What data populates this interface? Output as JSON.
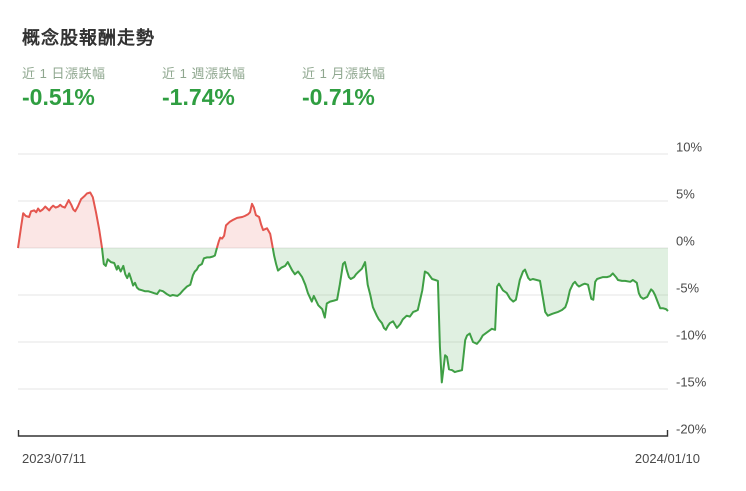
{
  "page": {
    "title": "概念股報酬走勢"
  },
  "stats": [
    {
      "label": "近 1 日漲跌幅",
      "value": "-0.51%"
    },
    {
      "label": "近 1 週漲跌幅",
      "value": "-1.74%"
    },
    {
      "label": "近 1 月漲跌幅",
      "value": "-0.71%"
    }
  ],
  "chart_data": {
    "type": "area",
    "title": "概念股報酬走勢",
    "unit": "%",
    "x_range": [
      "2023/07/11",
      "2024/01/10"
    ],
    "ylim": [
      -20,
      10
    ],
    "ytick_values": [
      10,
      5,
      0,
      -5,
      -10,
      -15,
      -20
    ],
    "ytick_labels": [
      "10%",
      "5%",
      "0%",
      "-5%",
      "-10%",
      "-15%",
      "-20%"
    ],
    "grid": "horizontal",
    "legend": "none",
    "colors": {
      "line_positive": "#e4564f",
      "line_negative": "#3f9f45",
      "fill_positive": "rgba(228,86,79,0.15)",
      "fill_negative": "rgba(63,159,69,0.16)",
      "gridline": "#e6e6e6",
      "axis": "#333333",
      "tick_label": "#4a4a4a",
      "stat_value": "#2f9e41"
    },
    "series": [
      {
        "name": "概念股報酬",
        "points_format": "[x_fraction_of_date_range, return_pct]",
        "points": [
          [
            0.0,
            0.0
          ],
          [
            0.005,
            2.4
          ],
          [
            0.008,
            3.7
          ],
          [
            0.012,
            3.4
          ],
          [
            0.017,
            3.3
          ],
          [
            0.02,
            3.9
          ],
          [
            0.025,
            4.0
          ],
          [
            0.028,
            3.8
          ],
          [
            0.031,
            4.2
          ],
          [
            0.034,
            3.9
          ],
          [
            0.038,
            4.1
          ],
          [
            0.042,
            4.4
          ],
          [
            0.045,
            4.2
          ],
          [
            0.048,
            4.0
          ],
          [
            0.051,
            4.3
          ],
          [
            0.054,
            4.5
          ],
          [
            0.058,
            4.3
          ],
          [
            0.062,
            4.4
          ],
          [
            0.065,
            4.6
          ],
          [
            0.068,
            4.4
          ],
          [
            0.072,
            4.3
          ],
          [
            0.075,
            4.7
          ],
          [
            0.078,
            5.1
          ],
          [
            0.082,
            4.6
          ],
          [
            0.085,
            4.1
          ],
          [
            0.088,
            3.9
          ],
          [
            0.092,
            4.4
          ],
          [
            0.097,
            5.2
          ],
          [
            0.102,
            5.5
          ],
          [
            0.106,
            5.8
          ],
          [
            0.111,
            5.9
          ],
          [
            0.115,
            5.4
          ],
          [
            0.12,
            3.8
          ],
          [
            0.125,
            1.9
          ],
          [
            0.129,
            0.1
          ],
          [
            0.132,
            -1.7
          ],
          [
            0.135,
            -1.9
          ],
          [
            0.138,
            -1.2
          ],
          [
            0.143,
            -1.5
          ],
          [
            0.148,
            -1.6
          ],
          [
            0.152,
            -2.3
          ],
          [
            0.154,
            -1.9
          ],
          [
            0.158,
            -2.5
          ],
          [
            0.162,
            -1.9
          ],
          [
            0.165,
            -2.8
          ],
          [
            0.168,
            -3.2
          ],
          [
            0.171,
            -2.7
          ],
          [
            0.174,
            -3.3
          ],
          [
            0.177,
            -4.0
          ],
          [
            0.18,
            -3.7
          ],
          [
            0.183,
            -4.2
          ],
          [
            0.186,
            -4.4
          ],
          [
            0.191,
            -4.5
          ],
          [
            0.195,
            -4.6
          ],
          [
            0.2,
            -4.6
          ],
          [
            0.205,
            -4.7
          ],
          [
            0.209,
            -4.8
          ],
          [
            0.214,
            -4.9
          ],
          [
            0.218,
            -4.5
          ],
          [
            0.223,
            -4.6
          ],
          [
            0.229,
            -4.9
          ],
          [
            0.234,
            -5.1
          ],
          [
            0.238,
            -5.0
          ],
          [
            0.245,
            -5.1
          ],
          [
            0.249,
            -4.9
          ],
          [
            0.254,
            -4.5
          ],
          [
            0.26,
            -4.1
          ],
          [
            0.265,
            -3.9
          ],
          [
            0.269,
            -2.9
          ],
          [
            0.272,
            -2.5
          ],
          [
            0.275,
            -2.3
          ],
          [
            0.278,
            -1.9
          ],
          [
            0.283,
            -1.7
          ],
          [
            0.286,
            -1.1
          ],
          [
            0.291,
            -1.0
          ],
          [
            0.295,
            -1.0
          ],
          [
            0.3,
            -0.9
          ],
          [
            0.303,
            -0.8
          ],
          [
            0.306,
            0.0
          ],
          [
            0.309,
            0.7
          ],
          [
            0.311,
            1.1
          ],
          [
            0.314,
            1.0
          ],
          [
            0.317,
            1.3
          ],
          [
            0.32,
            2.4
          ],
          [
            0.326,
            2.8
          ],
          [
            0.331,
            3.0
          ],
          [
            0.337,
            3.2
          ],
          [
            0.345,
            3.3
          ],
          [
            0.349,
            3.4
          ],
          [
            0.354,
            3.6
          ],
          [
            0.357,
            3.8
          ],
          [
            0.36,
            4.7
          ],
          [
            0.363,
            4.3
          ],
          [
            0.366,
            3.5
          ],
          [
            0.371,
            3.3
          ],
          [
            0.374,
            2.5
          ],
          [
            0.377,
            1.9
          ],
          [
            0.38,
            2.0
          ],
          [
            0.383,
            2.1
          ],
          [
            0.388,
            1.5
          ],
          [
            0.391,
            0.4
          ],
          [
            0.394,
            -0.8
          ],
          [
            0.397,
            -1.7
          ],
          [
            0.4,
            -2.4
          ],
          [
            0.405,
            -2.1
          ],
          [
            0.408,
            -2.0
          ],
          [
            0.411,
            -1.9
          ],
          [
            0.415,
            -1.5
          ],
          [
            0.422,
            -2.4
          ],
          [
            0.426,
            -2.8
          ],
          [
            0.431,
            -2.5
          ],
          [
            0.437,
            -3.1
          ],
          [
            0.442,
            -3.9
          ],
          [
            0.446,
            -4.8
          ],
          [
            0.452,
            -5.7
          ],
          [
            0.455,
            -5.1
          ],
          [
            0.462,
            -6.1
          ],
          [
            0.468,
            -6.5
          ],
          [
            0.472,
            -7.4
          ],
          [
            0.475,
            -5.9
          ],
          [
            0.48,
            -5.7
          ],
          [
            0.486,
            -5.6
          ],
          [
            0.491,
            -5.5
          ],
          [
            0.495,
            -3.9
          ],
          [
            0.5,
            -1.7
          ],
          [
            0.503,
            -1.5
          ],
          [
            0.506,
            -2.4
          ],
          [
            0.509,
            -3.1
          ],
          [
            0.512,
            -3.3
          ],
          [
            0.517,
            -3.1
          ],
          [
            0.52,
            -2.8
          ],
          [
            0.523,
            -2.6
          ],
          [
            0.529,
            -2.2
          ],
          [
            0.534,
            -1.5
          ],
          [
            0.538,
            -3.9
          ],
          [
            0.542,
            -5.0
          ],
          [
            0.546,
            -6.3
          ],
          [
            0.552,
            -7.2
          ],
          [
            0.555,
            -7.6
          ],
          [
            0.56,
            -8.0
          ],
          [
            0.563,
            -8.5
          ],
          [
            0.566,
            -8.7
          ],
          [
            0.569,
            -8.3
          ],
          [
            0.572,
            -8.0
          ],
          [
            0.577,
            -7.8
          ],
          [
            0.583,
            -8.5
          ],
          [
            0.588,
            -8.1
          ],
          [
            0.592,
            -7.6
          ],
          [
            0.598,
            -7.2
          ],
          [
            0.603,
            -7.3
          ],
          [
            0.608,
            -6.8
          ],
          [
            0.612,
            -6.7
          ],
          [
            0.615,
            -6.6
          ],
          [
            0.622,
            -4.5
          ],
          [
            0.626,
            -2.5
          ],
          [
            0.631,
            -2.7
          ],
          [
            0.637,
            -3.3
          ],
          [
            0.642,
            -3.4
          ],
          [
            0.646,
            -3.5
          ],
          [
            0.649,
            -10.5
          ],
          [
            0.652,
            -14.3
          ],
          [
            0.657,
            -11.4
          ],
          [
            0.66,
            -11.6
          ],
          [
            0.663,
            -12.9
          ],
          [
            0.668,
            -13.0
          ],
          [
            0.672,
            -13.2
          ],
          [
            0.677,
            -13.1
          ],
          [
            0.683,
            -13.0
          ],
          [
            0.688,
            -9.8
          ],
          [
            0.691,
            -9.3
          ],
          [
            0.695,
            -9.1
          ],
          [
            0.7,
            -10.0
          ],
          [
            0.706,
            -10.2
          ],
          [
            0.711,
            -9.8
          ],
          [
            0.715,
            -9.3
          ],
          [
            0.723,
            -8.9
          ],
          [
            0.729,
            -8.6
          ],
          [
            0.734,
            -8.7
          ],
          [
            0.737,
            -4.1
          ],
          [
            0.74,
            -3.8
          ],
          [
            0.746,
            -4.5
          ],
          [
            0.752,
            -4.8
          ],
          [
            0.757,
            -5.4
          ],
          [
            0.762,
            -5.7
          ],
          [
            0.766,
            -5.5
          ],
          [
            0.772,
            -3.4
          ],
          [
            0.777,
            -2.5
          ],
          [
            0.78,
            -2.3
          ],
          [
            0.785,
            -3.2
          ],
          [
            0.788,
            -3.4
          ],
          [
            0.792,
            -3.3
          ],
          [
            0.798,
            -3.4
          ],
          [
            0.803,
            -3.5
          ],
          [
            0.808,
            -5.5
          ],
          [
            0.811,
            -6.8
          ],
          [
            0.815,
            -7.2
          ],
          [
            0.822,
            -7.0
          ],
          [
            0.826,
            -6.9
          ],
          [
            0.831,
            -6.8
          ],
          [
            0.837,
            -6.6
          ],
          [
            0.842,
            -6.3
          ],
          [
            0.845,
            -5.7
          ],
          [
            0.849,
            -4.5
          ],
          [
            0.854,
            -3.8
          ],
          [
            0.857,
            -3.6
          ],
          [
            0.86,
            -3.9
          ],
          [
            0.863,
            -4.1
          ],
          [
            0.868,
            -3.9
          ],
          [
            0.872,
            -3.8
          ],
          [
            0.877,
            -3.9
          ],
          [
            0.882,
            -5.4
          ],
          [
            0.885,
            -5.5
          ],
          [
            0.888,
            -3.6
          ],
          [
            0.891,
            -3.3
          ],
          [
            0.895,
            -3.2
          ],
          [
            0.9,
            -3.1
          ],
          [
            0.906,
            -3.1
          ],
          [
            0.911,
            -3.0
          ],
          [
            0.915,
            -2.7
          ],
          [
            0.92,
            -3.1
          ],
          [
            0.923,
            -3.4
          ],
          [
            0.929,
            -3.5
          ],
          [
            0.934,
            -3.5
          ],
          [
            0.942,
            -3.6
          ],
          [
            0.946,
            -3.4
          ],
          [
            0.952,
            -3.7
          ],
          [
            0.955,
            -4.8
          ],
          [
            0.958,
            -5.2
          ],
          [
            0.962,
            -5.4
          ],
          [
            0.968,
            -5.2
          ],
          [
            0.971,
            -4.8
          ],
          [
            0.974,
            -4.4
          ],
          [
            0.977,
            -4.6
          ],
          [
            0.98,
            -5.0
          ],
          [
            0.985,
            -5.9
          ],
          [
            0.988,
            -6.4
          ],
          [
            0.992,
            -6.4
          ],
          [
            0.997,
            -6.5
          ],
          [
            1.0,
            -6.7
          ]
        ]
      }
    ]
  }
}
